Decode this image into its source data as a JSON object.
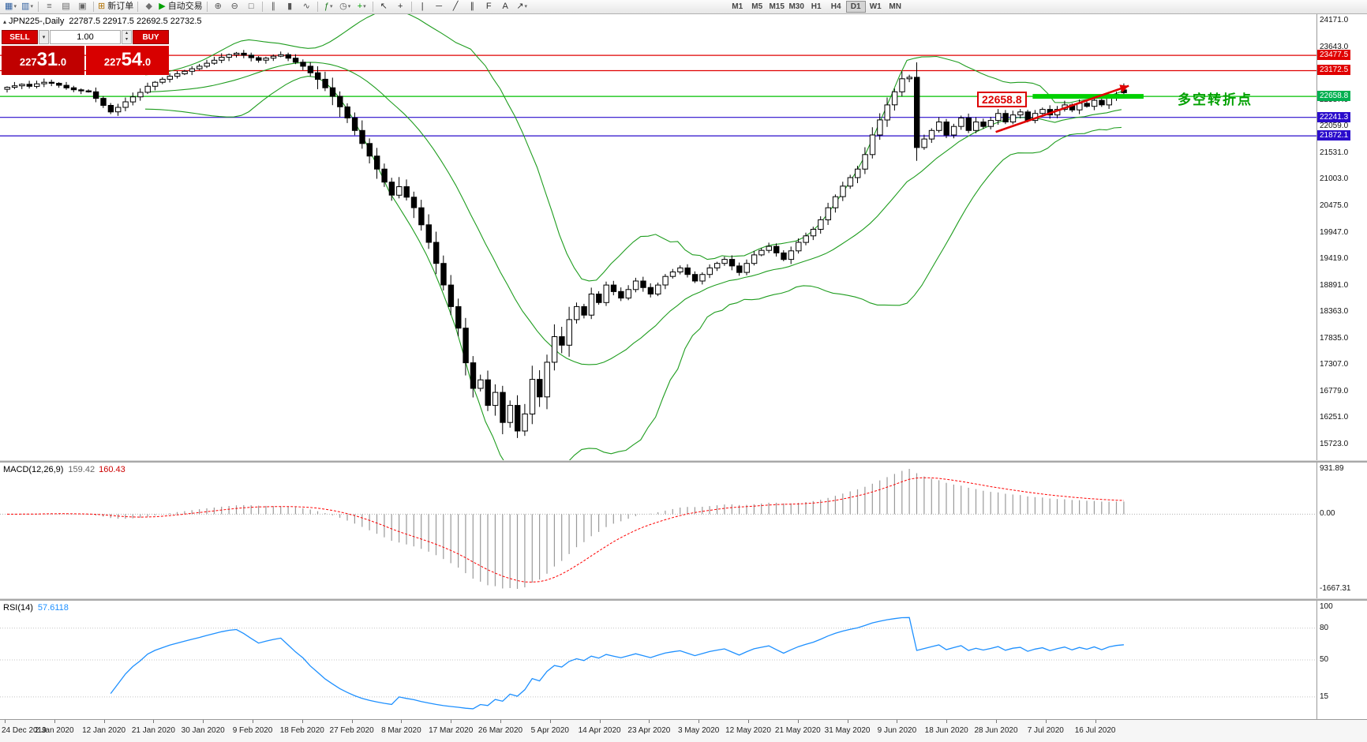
{
  "colors": {
    "up_candle": "#ffffff",
    "down_candle": "#000000",
    "candle_border": "#000000",
    "bollinger": "#1f9d1f",
    "red_line": "#e00000",
    "blue_line": "#2a0ccc",
    "green_line": "#00c000",
    "macd_bar": "#9a9a9a",
    "macd_signal": "#ff0000",
    "rsi_line": "#1e90ff",
    "accent_red": "#d40000"
  },
  "icons": {
    "dropdown": "▾",
    "up": "▴",
    "down": "▾",
    "collapse": "▴"
  },
  "toolbar": {
    "groups": [
      [
        {
          "name": "new-chart",
          "glyph": "▦",
          "color": "#2f5f9f",
          "dropdown": true
        },
        {
          "name": "chart-profiles",
          "glyph": "▥",
          "color": "#2f5f9f",
          "dropdown": true
        }
      ],
      [
        {
          "name": "market-watch",
          "glyph": "≡",
          "color": "#666666"
        },
        {
          "name": "navigator",
          "glyph": "▤",
          "color": "#666666"
        },
        {
          "name": "terminal",
          "glyph": "▣",
          "color": "#666666"
        }
      ],
      [
        {
          "name": "new-order",
          "glyph": "⊞",
          "color": "#b07000",
          "label": "新订单"
        }
      ],
      [
        {
          "name": "metaeditor",
          "glyph": "◆",
          "color": "#707070"
        },
        {
          "name": "autotrading",
          "glyph": "▶",
          "color": "#00a000",
          "label": "自动交易"
        }
      ],
      [
        {
          "name": "zoom-in",
          "glyph": "⊕",
          "color": "#555555"
        },
        {
          "name": "zoom-out",
          "glyph": "⊖",
          "color": "#555555"
        },
        {
          "name": "tile-windows",
          "glyph": "□",
          "color": "#555555"
        }
      ],
      [
        {
          "name": "bar-chart-mode",
          "glyph": "∥",
          "color": "#555555"
        },
        {
          "name": "candlestick-mode",
          "glyph": "▮",
          "color": "#555555"
        },
        {
          "name": "line-chart-mode",
          "glyph": "∿",
          "color": "#555555"
        }
      ],
      [
        {
          "name": "indicators-list",
          "glyph": "ƒ",
          "color": "#1d7a1d",
          "dropdown": true
        },
        {
          "name": "periods",
          "glyph": "◷",
          "color": "#555555",
          "dropdown": true
        },
        {
          "name": "templates",
          "glyph": "+",
          "color": "#00a000",
          "dropdown": true
        }
      ],
      [
        {
          "name": "cursor",
          "glyph": "↖",
          "color": "#333333"
        },
        {
          "name": "crosshair",
          "glyph": "+",
          "color": "#333333"
        }
      ],
      [
        {
          "name": "vertical-line-tool",
          "glyph": "|",
          "color": "#333333"
        },
        {
          "name": "horizontal-line-tool",
          "glyph": "─",
          "color": "#333333"
        },
        {
          "name": "trendline-tool",
          "glyph": "╱",
          "color": "#333333"
        },
        {
          "name": "channel-tool",
          "glyph": "∥",
          "color": "#333333"
        },
        {
          "name": "fibonacci-tool",
          "glyph": "F",
          "color": "#333333"
        },
        {
          "name": "text-tool",
          "glyph": "A",
          "color": "#333333"
        },
        {
          "name": "arrows-tool",
          "glyph": "↗",
          "color": "#333333",
          "dropdown": true
        }
      ]
    ],
    "timeframes": [
      "M1",
      "M5",
      "M15",
      "M30",
      "H1",
      "H4",
      "D1",
      "W1",
      "MN"
    ],
    "active_timeframe": "D1"
  },
  "symbol_bar": {
    "title": "JPN225-,Daily",
    "ohlc": "22787.5 22917.5 22692.5 22732.5"
  },
  "trade_panel": {
    "sell_label": "SELL",
    "buy_label": "BUY",
    "volume": "1.00",
    "sell_price": {
      "prefix": "227",
      "big": "31",
      "suffix": ".0",
      "full": "22731.0"
    },
    "buy_price": {
      "prefix": "227",
      "big": "54",
      "suffix": ".0",
      "full": "22754.0"
    }
  },
  "price_axis": {
    "labels": [
      "24171.0",
      "23643.0",
      "23115.0",
      "22587.0",
      "22059.0",
      "21531.0",
      "21003.0",
      "20475.0",
      "19947.0",
      "19419.0",
      "18891.0",
      "18363.0",
      "17835.0",
      "17307.0",
      "16779.0",
      "16251.0",
      "15723.0"
    ],
    "badges": [
      {
        "text": "23477.5",
        "price": 23477.5,
        "bg": "#e00000"
      },
      {
        "text": "23172.5",
        "price": 23172.5,
        "bg": "#e00000"
      },
      {
        "text": "22658.8",
        "price": 22658.8,
        "bg": "#00b050"
      },
      {
        "text": "22241.3",
        "price": 22241.3,
        "bg": "#2a0ccc"
      },
      {
        "text": "21872.1",
        "price": 21872.1,
        "bg": "#2a0ccc"
      }
    ]
  },
  "annotations": {
    "price_box_text": "22658.8",
    "turning_point_text": "多空转折点"
  },
  "chart_data": {
    "type": "candlestick",
    "symbol": "JPN225-",
    "timeframe": "Daily",
    "ohlc_current": {
      "open": 22787.5,
      "high": 22917.5,
      "low": 22692.5,
      "close": 22732.5
    },
    "price_axis_top": 24171.0,
    "price_axis_bottom": 15723.0,
    "closes": [
      22840,
      22870,
      22900,
      22860,
      22910,
      22940,
      22920,
      22880,
      22830,
      22790,
      22770,
      22750,
      22620,
      22480,
      22350,
      22440,
      22550,
      22650,
      22740,
      22860,
      22940,
      23000,
      23060,
      23110,
      23160,
      23210,
      23260,
      23320,
      23380,
      23440,
      23490,
      23520,
      23480,
      23430,
      23380,
      23420,
      23460,
      23490,
      23420,
      23340,
      23260,
      23130,
      23000,
      22830,
      22660,
      22450,
      22230,
      21980,
      21720,
      21470,
      21210,
      20950,
      20690,
      20860,
      20650,
      20440,
      20100,
      19750,
      19330,
      18900,
      18470,
      18040,
      17350,
      16840,
      17010,
      16500,
      16760,
      16160,
      16500,
      15990,
      16330,
      17020,
      16670,
      17360,
      17870,
      17700,
      18210,
      18470,
      18300,
      18720,
      18550,
      18900,
      18770,
      18640,
      18810,
      18980,
      18850,
      18720,
      18900,
      19070,
      19160,
      19240,
      19110,
      18980,
      19110,
      19240,
      19330,
      19410,
      19280,
      19150,
      19330,
      19500,
      19590,
      19670,
      19540,
      19410,
      19580,
      19750,
      19880,
      20010,
      20200,
      20440,
      20660,
      20870,
      21040,
      21210,
      21500,
      21890,
      22190,
      22490,
      22750,
      23010,
      23040,
      21640,
      21810,
      21980,
      22150,
      21890,
      22060,
      22230,
      21980,
      22150,
      22060,
      22180,
      22320,
      22150,
      22290,
      22350,
      22180,
      22320,
      22400,
      22290,
      22400,
      22490,
      22390,
      22520,
      22460,
      22580,
      22490,
      22630,
      22700,
      22732.5
    ],
    "horizontal_lines": [
      {
        "price": 23477.5,
        "color": "#e00000"
      },
      {
        "price": 23172.5,
        "color": "#e00000"
      },
      {
        "price": 22658.8,
        "color": "#00c000"
      },
      {
        "price": 22241.3,
        "color": "#2a0ccc"
      },
      {
        "price": 21872.1,
        "color": "#2a0ccc"
      }
    ],
    "support_band": {
      "price": 22658.8,
      "x_start_index": 139,
      "x_end_index": 154,
      "color": "#00d000"
    },
    "trend_arrow": {
      "from_index": 134,
      "from_price": 21950,
      "to_index": 152,
      "to_price": 22870,
      "color": "#e00000"
    },
    "indicators": [
      "Bollinger Bands (20,2)",
      "MACD(12,26,9)",
      "RSI(14)"
    ]
  },
  "macd": {
    "label": "MACD(12,26,9)",
    "value1": "159.42",
    "value2": "160.43",
    "axis_max_label": "931.89",
    "axis_zero_label": "0.00",
    "axis_min_label": "-1667.31",
    "fast": 12,
    "slow": 26,
    "signal_period": 9
  },
  "rsi": {
    "label": "RSI(14)",
    "value": "57.6118",
    "period": 14,
    "axis_labels": [
      "100",
      "80",
      "50",
      "15"
    ],
    "levels": [
      80,
      50,
      15
    ]
  },
  "time_axis": {
    "labels": [
      "24 Dec 2019",
      "2 Jan 2020",
      "12 Jan 2020",
      "21 Jan 2020",
      "30 Jan 2020",
      "9 Feb 2020",
      "18 Feb 2020",
      "27 Feb 2020",
      "8 Mar 2020",
      "17 Mar 2020",
      "26 Mar 2020",
      "5 Apr 2020",
      "14 Apr 2020",
      "23 Apr 2020",
      "3 May 2020",
      "12 May 2020",
      "21 May 2020",
      "31 May 2020",
      "9 Jun 2020",
      "18 Jun 2020",
      "28 Jun 2020",
      "7 Jul 2020",
      "16 Jul 2020"
    ]
  }
}
